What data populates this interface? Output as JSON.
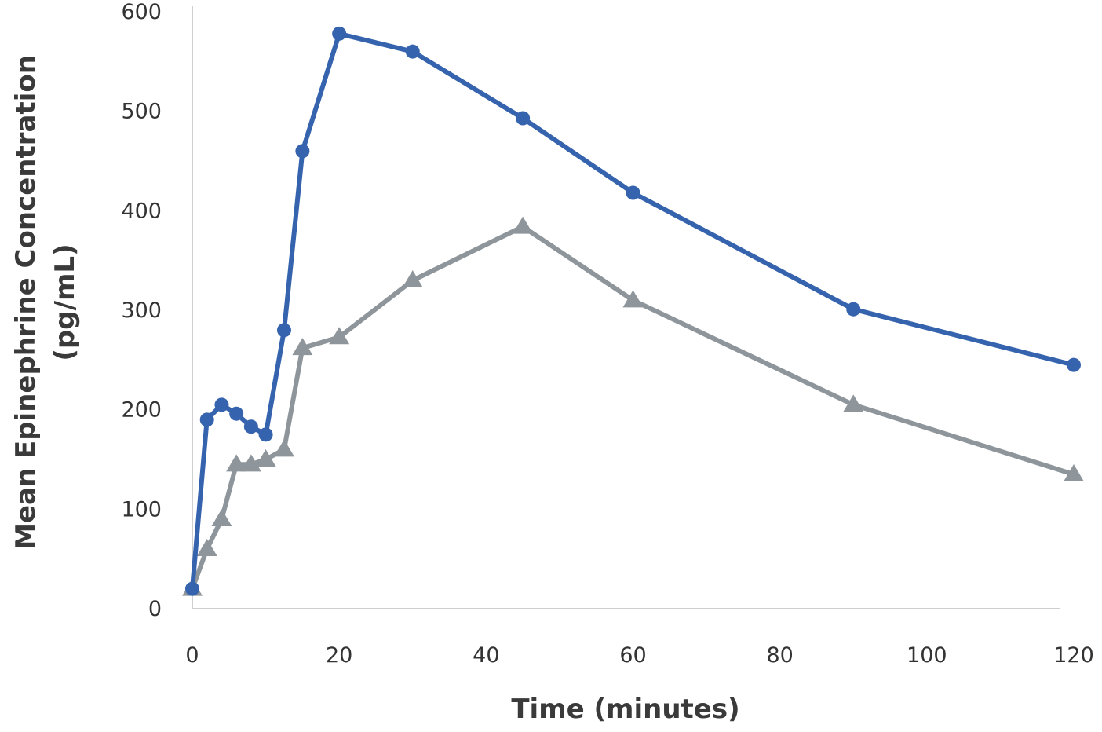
{
  "chart_data": {
    "type": "line",
    "title": "",
    "xlabel": "Time (minutes)",
    "ylabel_line1": "Mean Epinephrine Concentration",
    "ylabel_line2": "(pg/mL)",
    "xlim": [
      0,
      120
    ],
    "ylim": [
      0,
      600
    ],
    "xticks": [
      0,
      20,
      40,
      60,
      80,
      100,
      120
    ],
    "yticks": [
      0,
      100,
      200,
      300,
      400,
      500,
      600
    ],
    "grid": false,
    "legend": "none",
    "series": [
      {
        "marker": "circle",
        "color": "#3563ad",
        "x": [
          0,
          2,
          4,
          6,
          8,
          10,
          12.5,
          15,
          20,
          30,
          45,
          60,
          90,
          120
        ],
        "y": [
          20,
          190,
          205,
          196,
          183,
          175,
          280,
          460,
          578,
          560,
          493,
          418,
          301,
          245
        ]
      },
      {
        "marker": "triangle",
        "color": "#8e969b",
        "x": [
          0,
          2,
          4,
          6,
          8,
          10,
          12.5,
          15,
          20,
          30,
          45,
          60,
          90,
          120
        ],
        "y": [
          20,
          60,
          90,
          145,
          145,
          150,
          160,
          262,
          273,
          330,
          384,
          310,
          205,
          135
        ]
      }
    ]
  }
}
